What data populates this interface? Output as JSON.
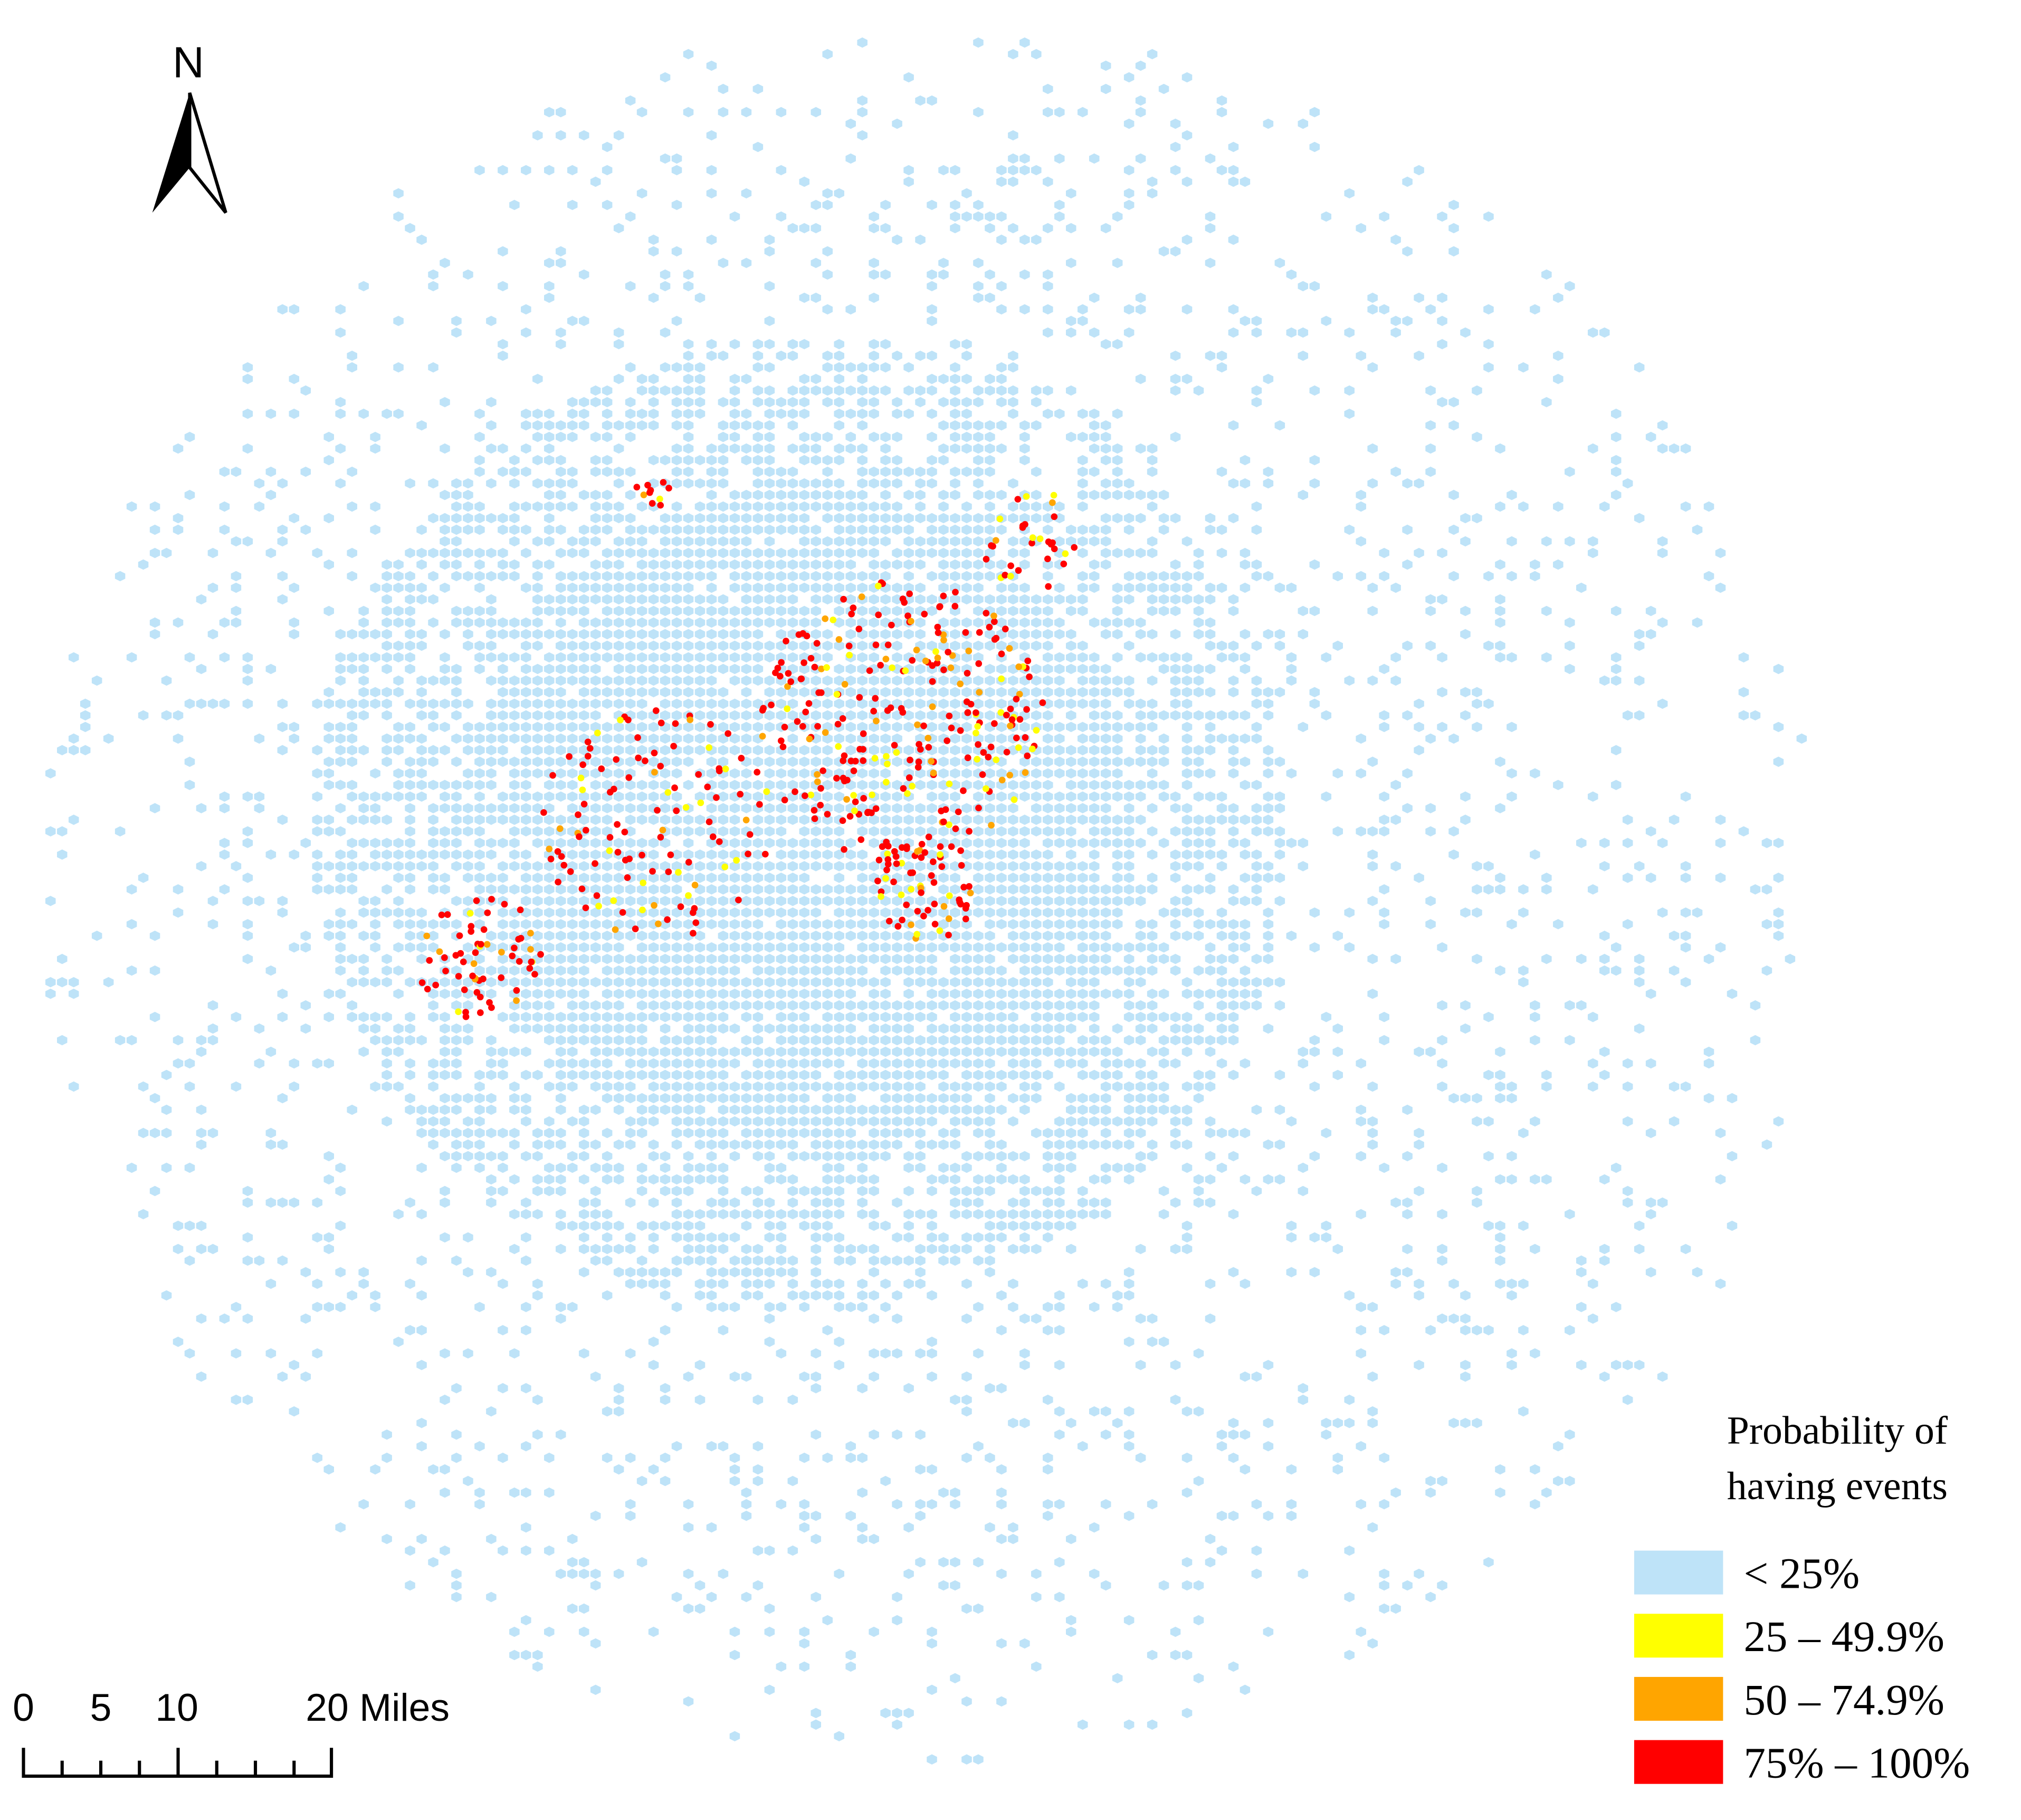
{
  "north_arrow": {
    "label": "N"
  },
  "scale_bar": {
    "labels": [
      "0",
      "5",
      "10",
      "20 Miles"
    ]
  },
  "legend": {
    "title_lines": [
      "Probability of",
      "having events"
    ],
    "items": [
      {
        "label": "< 25%",
        "color": "#bee3f8"
      },
      {
        "label": "25 – 49.9%",
        "color": "#ffff00"
      },
      {
        "label": "50 – 74.9%",
        "color": "#ffa500"
      },
      {
        "label": "75% – 100%",
        "color": "#ff0000"
      }
    ]
  }
}
